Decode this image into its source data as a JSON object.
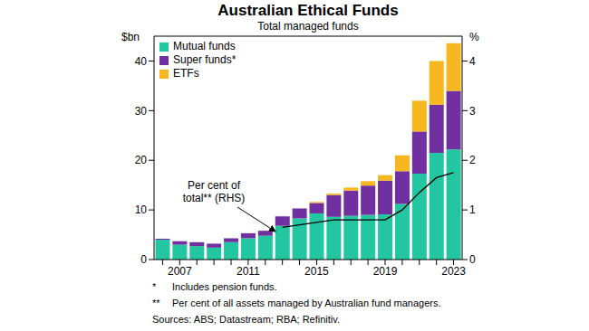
{
  "chart_data": {
    "type": "bar",
    "title": "Australian Ethical Funds",
    "subtitle": "Total managed funds",
    "ylabel": "$bn",
    "y2label": "%",
    "categories": [
      null,
      "2007",
      null,
      null,
      null,
      "2011",
      null,
      null,
      null,
      "2015",
      null,
      null,
      null,
      "2019",
      null,
      null,
      null,
      "2023"
    ],
    "series": [
      {
        "name": "Mutual funds",
        "color": "#22c7a1",
        "values": [
          4.0,
          3.0,
          2.7,
          2.4,
          3.5,
          4.3,
          4.8,
          6.8,
          8.3,
          9.3,
          8.6,
          8.8,
          9.0,
          9.1,
          11.2,
          17.3,
          21.5,
          22.2
        ]
      },
      {
        "name": "Super funds*",
        "color": "#7030a0",
        "values": [
          0.2,
          0.7,
          0.8,
          0.8,
          0.8,
          1.0,
          1.0,
          1.9,
          2.0,
          2.1,
          4.4,
          5.1,
          5.9,
          6.8,
          6.6,
          8.5,
          9.7,
          11.8
        ]
      },
      {
        "name": "ETFs",
        "color": "#f6b71f",
        "values": [
          0,
          0,
          0,
          0,
          0,
          0,
          0,
          0,
          0,
          0.2,
          0.3,
          0.6,
          0.9,
          1.1,
          3.2,
          6.2,
          8.8,
          9.6
        ]
      },
      {
        "name": "Per cent of total** (RHS)",
        "color": "#000000",
        "type": "line",
        "axis": "y2",
        "values": [
          null,
          null,
          null,
          null,
          null,
          null,
          null,
          0.65,
          0.7,
          0.75,
          0.8,
          0.8,
          0.8,
          0.8,
          1.0,
          1.35,
          1.65,
          1.75
        ]
      }
    ],
    "ylim": [
      0,
      45
    ],
    "yticks": [
      0,
      10,
      20,
      30,
      40
    ],
    "y2lim": [
      0,
      4.5
    ],
    "y2ticks": [
      0,
      1,
      2,
      3,
      4
    ],
    "stacked": true,
    "legend": "top-left",
    "notes": [
      {
        "mark": "*",
        "text": "Includes pension funds."
      },
      {
        "mark": "**",
        "text": "Per cent of all assets managed by Australian fund managers."
      },
      {
        "mark": "",
        "text": "Sources: ABS; Datastream; RBA; Refinitiv."
      }
    ]
  }
}
